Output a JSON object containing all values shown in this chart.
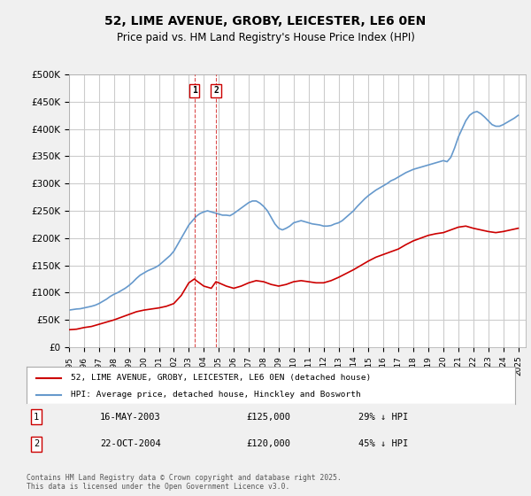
{
  "title": "52, LIME AVENUE, GROBY, LEICESTER, LE6 0EN",
  "subtitle": "Price paid vs. HM Land Registry's House Price Index (HPI)",
  "xlabel": "",
  "ylabel": "",
  "ylim": [
    0,
    500000
  ],
  "yticks": [
    0,
    50000,
    100000,
    150000,
    200000,
    250000,
    300000,
    350000,
    400000,
    450000,
    500000
  ],
  "ytick_labels": [
    "£0",
    "£50K",
    "£100K",
    "£150K",
    "£200K",
    "£250K",
    "£300K",
    "£350K",
    "£400K",
    "£450K",
    "£500K"
  ],
  "xlim_start": 1995.0,
  "xlim_end": 2025.5,
  "background_color": "#f0f0f0",
  "plot_bg_color": "#ffffff",
  "grid_color": "#cccccc",
  "hpi_color": "#6699cc",
  "price_color": "#cc0000",
  "legend_label_price": "52, LIME AVENUE, GROBY, LEICESTER, LE6 0EN (detached house)",
  "legend_label_hpi": "HPI: Average price, detached house, Hinckley and Bosworth",
  "footer": "Contains HM Land Registry data © Crown copyright and database right 2025.\nThis data is licensed under the Open Government Licence v3.0.",
  "sale1_date": "16-MAY-2003",
  "sale1_price": 125000,
  "sale1_hpi_pct": "29% ↓ HPI",
  "sale1_year": 2003.37,
  "sale2_date": "22-OCT-2004",
  "sale2_price": 120000,
  "sale2_hpi_pct": "45% ↓ HPI",
  "sale2_year": 2004.81,
  "hpi_years": [
    1995.0,
    1995.25,
    1995.5,
    1995.75,
    1996.0,
    1996.25,
    1996.5,
    1996.75,
    1997.0,
    1997.25,
    1997.5,
    1997.75,
    1998.0,
    1998.25,
    1998.5,
    1998.75,
    1999.0,
    1999.25,
    1999.5,
    1999.75,
    2000.0,
    2000.25,
    2000.5,
    2000.75,
    2001.0,
    2001.25,
    2001.5,
    2001.75,
    2002.0,
    2002.25,
    2002.5,
    2002.75,
    2003.0,
    2003.25,
    2003.5,
    2003.75,
    2004.0,
    2004.25,
    2004.5,
    2004.75,
    2005.0,
    2005.25,
    2005.5,
    2005.75,
    2006.0,
    2006.25,
    2006.5,
    2006.75,
    2007.0,
    2007.25,
    2007.5,
    2007.75,
    2008.0,
    2008.25,
    2008.5,
    2008.75,
    2009.0,
    2009.25,
    2009.5,
    2009.75,
    2010.0,
    2010.25,
    2010.5,
    2010.75,
    2011.0,
    2011.25,
    2011.5,
    2011.75,
    2012.0,
    2012.25,
    2012.5,
    2012.75,
    2013.0,
    2013.25,
    2013.5,
    2013.75,
    2014.0,
    2014.25,
    2014.5,
    2014.75,
    2015.0,
    2015.25,
    2015.5,
    2015.75,
    2016.0,
    2016.25,
    2016.5,
    2016.75,
    2017.0,
    2017.25,
    2017.5,
    2017.75,
    2018.0,
    2018.25,
    2018.5,
    2018.75,
    2019.0,
    2019.25,
    2019.5,
    2019.75,
    2020.0,
    2020.25,
    2020.5,
    2020.75,
    2021.0,
    2021.25,
    2021.5,
    2021.75,
    2022.0,
    2022.25,
    2022.5,
    2022.75,
    2023.0,
    2023.25,
    2023.5,
    2023.75,
    2024.0,
    2024.25,
    2024.5,
    2024.75,
    2025.0
  ],
  "hpi_values": [
    68000,
    69000,
    70000,
    70500,
    72000,
    73500,
    75000,
    77000,
    80000,
    84000,
    88000,
    93000,
    97000,
    100000,
    104000,
    108000,
    113000,
    119000,
    126000,
    132000,
    136000,
    140000,
    143000,
    146000,
    150000,
    156000,
    162000,
    168000,
    176000,
    188000,
    200000,
    212000,
    224000,
    232000,
    240000,
    245000,
    248000,
    250000,
    248000,
    246000,
    244000,
    242000,
    242000,
    241000,
    245000,
    250000,
    255000,
    260000,
    265000,
    268000,
    268000,
    264000,
    258000,
    250000,
    238000,
    226000,
    218000,
    215000,
    218000,
    222000,
    228000,
    230000,
    232000,
    230000,
    228000,
    226000,
    225000,
    224000,
    222000,
    222000,
    223000,
    226000,
    228000,
    232000,
    238000,
    244000,
    250000,
    258000,
    265000,
    272000,
    278000,
    283000,
    288000,
    292000,
    296000,
    300000,
    305000,
    308000,
    312000,
    316000,
    320000,
    323000,
    326000,
    328000,
    330000,
    332000,
    334000,
    336000,
    338000,
    340000,
    342000,
    340000,
    348000,
    365000,
    385000,
    400000,
    415000,
    425000,
    430000,
    432000,
    428000,
    422000,
    415000,
    408000,
    405000,
    405000,
    408000,
    412000,
    416000,
    420000,
    425000
  ],
  "price_years": [
    1995.0,
    1995.5,
    1996.0,
    1996.5,
    1997.0,
    1997.5,
    1998.0,
    1998.5,
    1999.0,
    1999.5,
    2000.0,
    2000.5,
    2001.0,
    2001.5,
    2002.0,
    2002.5,
    2003.0,
    2003.37,
    2003.5,
    2004.0,
    2004.5,
    2004.81,
    2005.0,
    2005.5,
    2006.0,
    2006.5,
    2007.0,
    2007.5,
    2008.0,
    2008.5,
    2009.0,
    2009.5,
    2010.0,
    2010.5,
    2011.0,
    2011.5,
    2012.0,
    2012.5,
    2013.0,
    2013.5,
    2014.0,
    2014.5,
    2015.0,
    2015.5,
    2016.0,
    2016.5,
    2017.0,
    2017.5,
    2018.0,
    2018.5,
    2019.0,
    2019.5,
    2020.0,
    2020.5,
    2021.0,
    2021.5,
    2022.0,
    2022.5,
    2023.0,
    2023.5,
    2024.0,
    2024.5,
    2025.0
  ],
  "price_values": [
    32000,
    33000,
    36000,
    38000,
    42000,
    46000,
    50000,
    55000,
    60000,
    65000,
    68000,
    70000,
    72000,
    75000,
    80000,
    95000,
    118000,
    125000,
    122000,
    112000,
    108000,
    120000,
    118000,
    112000,
    108000,
    112000,
    118000,
    122000,
    120000,
    115000,
    112000,
    115000,
    120000,
    122000,
    120000,
    118000,
    118000,
    122000,
    128000,
    135000,
    142000,
    150000,
    158000,
    165000,
    170000,
    175000,
    180000,
    188000,
    195000,
    200000,
    205000,
    208000,
    210000,
    215000,
    220000,
    222000,
    218000,
    215000,
    212000,
    210000,
    212000,
    215000,
    218000
  ]
}
